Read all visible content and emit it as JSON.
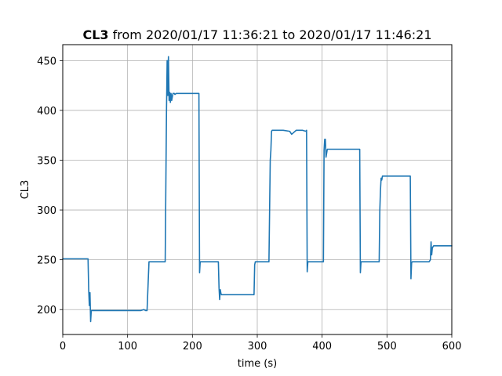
{
  "chart_data": {
    "type": "line",
    "title_bold": "CL3",
    "title_rest": " from 2020/01/17 11:36:21 to 2020/01/17 11:46:21",
    "xlabel": "time (s)",
    "ylabel": "CL3",
    "xlim": [
      0,
      600
    ],
    "ylim": [
      175,
      466
    ],
    "xticks": [
      0,
      100,
      200,
      300,
      400,
      500,
      600
    ],
    "yticks": [
      200,
      250,
      300,
      350,
      400,
      450
    ],
    "grid": true,
    "line_color": "#1f77b4",
    "series": [
      {
        "x": [
          0,
          39,
          40,
          41,
          42,
          43,
          44,
          45,
          100,
          120,
          125,
          128,
          130,
          133,
          158,
          160,
          161,
          162,
          163,
          164,
          165,
          166,
          167,
          168,
          170,
          172,
          173,
          175,
          210,
          211,
          212,
          213,
          215,
          240,
          241,
          242,
          243,
          244,
          245,
          295,
          296,
          297,
          298,
          318,
          320,
          321,
          322,
          323,
          325,
          330,
          340,
          350,
          353,
          360,
          370,
          375,
          376,
          377,
          378,
          380,
          400,
          402,
          403,
          404,
          405,
          406,
          408,
          409,
          410,
          411,
          412,
          414,
          420,
          440,
          458,
          459,
          460,
          461,
          462,
          463,
          488,
          489,
          490,
          491,
          492,
          493,
          495,
          500,
          520,
          535,
          536,
          537,
          538,
          539,
          540,
          541,
          542,
          544,
          550,
          560,
          565,
          567,
          568,
          569,
          570,
          572,
          575,
          580,
          600
        ],
        "y": [
          251,
          251,
          220,
          204,
          217,
          188,
          199,
          199,
          199,
          199,
          200,
          199,
          199,
          248,
          248,
          400,
          450,
          415,
          454,
          410,
          418,
          408,
          417,
          410,
          417,
          417,
          416,
          417,
          417,
          237,
          248,
          248,
          248,
          248,
          222,
          210,
          220,
          216,
          215,
          215,
          245,
          248,
          248,
          248,
          350,
          360,
          379,
          380,
          380,
          380,
          380,
          379,
          376,
          380,
          380,
          379,
          380,
          238,
          248,
          248,
          248,
          248,
          360,
          371,
          371,
          353,
          361,
          361,
          361,
          361,
          361,
          361,
          361,
          361,
          361,
          237,
          248,
          248,
          248,
          248,
          248,
          300,
          320,
          332,
          330,
          334,
          334,
          334,
          334,
          334,
          334,
          231,
          247,
          248,
          248,
          248,
          248,
          248,
          248,
          248,
          248,
          250,
          268,
          255,
          262,
          264,
          264,
          264,
          264
        ]
      }
    ]
  }
}
